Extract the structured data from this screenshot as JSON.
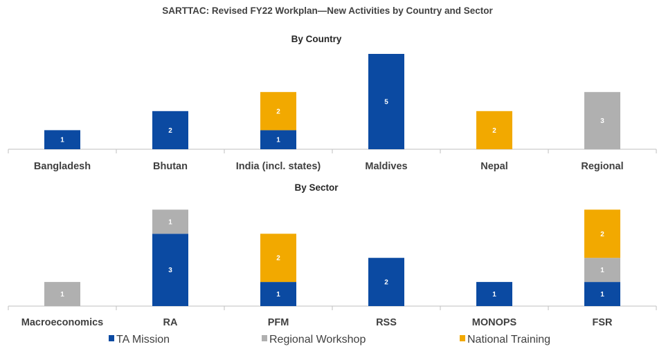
{
  "chart_data": [
    {
      "type": "bar",
      "stacked": true,
      "title": "SARTTAC: Revised FY22 Workplan—New Activities by Country and Sector",
      "subtitle": "By Country",
      "categories": [
        "Bangladesh",
        "Bhutan",
        "India (incl. states)",
        "Maldives",
        "Nepal",
        "Regional"
      ],
      "series": [
        {
          "name": "TA Mission",
          "color": "#0b4aa2",
          "values": [
            1,
            2,
            1,
            5,
            0,
            0
          ]
        },
        {
          "name": "Regional Workshop",
          "color": "#b0b0b0",
          "values": [
            0,
            0,
            0,
            0,
            0,
            3
          ]
        },
        {
          "name": "National Training",
          "color": "#f2a900",
          "values": [
            0,
            0,
            2,
            0,
            2,
            0
          ]
        }
      ],
      "ylim": [
        0,
        5
      ]
    },
    {
      "type": "bar",
      "stacked": true,
      "subtitle": "By Sector",
      "categories": [
        "Macroeconomics",
        "RA",
        "PFM",
        "RSS",
        "MONOPS",
        "FSR"
      ],
      "series": [
        {
          "name": "TA Mission",
          "color": "#0b4aa2",
          "values": [
            0,
            3,
            1,
            2,
            1,
            1
          ]
        },
        {
          "name": "Regional Workshop",
          "color": "#b0b0b0",
          "values": [
            1,
            1,
            0,
            0,
            0,
            1
          ]
        },
        {
          "name": "National Training",
          "color": "#f2a900",
          "values": [
            0,
            0,
            2,
            0,
            0,
            2
          ]
        }
      ],
      "ylim": [
        0,
        4
      ]
    }
  ],
  "legend": {
    "position": "bottom",
    "items": [
      {
        "name": "TA Mission",
        "color": "#0b4aa2"
      },
      {
        "name": "Regional Workshop",
        "color": "#b0b0b0"
      },
      {
        "name": "National Training",
        "color": "#f2a900"
      }
    ]
  }
}
